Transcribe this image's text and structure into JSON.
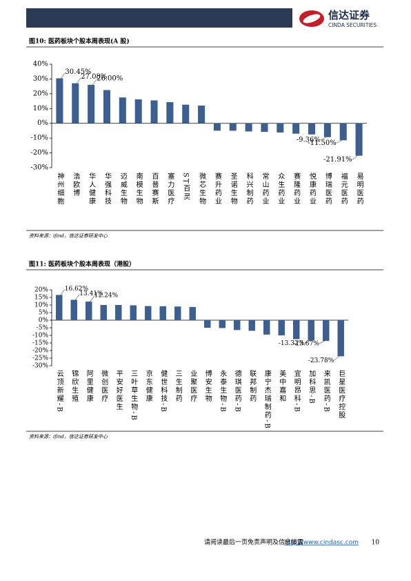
{
  "header": {
    "logo_cn": "信达证券",
    "logo_en": "CINDA SECURITIES"
  },
  "chart_data": [
    {
      "type": "bar",
      "title": "图10: 医药板块个股本周表现(A 股)",
      "source": "资料来源：ifind，信达证券研发中心",
      "color": "#3d5f8f",
      "categories": [
        "神州细胞",
        "浩欧博",
        "华人健康",
        "华强科技",
        "迈威生物",
        "南模生物",
        "百普赛斯",
        "塞力医疗",
        "ST百灵",
        "微芯生物",
        "赛升药业",
        "圣诺生物",
        "科兴制药",
        "常山药业",
        "众生药业",
        "赛隆药业",
        "悦康药业",
        "博瑞医药",
        "福元医药",
        "易明医药"
      ],
      "values": [
        30.45,
        27.08,
        26.0,
        22.5,
        17.5,
        16.2,
        15.5,
        14.3,
        12.6,
        12.0,
        -5.0,
        -5.0,
        -5.5,
        -5.8,
        -6.2,
        -7.0,
        -7.5,
        -9.36,
        -11.5,
        -21.91
      ],
      "value_labels": [
        "30.45%",
        "27.08%",
        "26.00%",
        null,
        null,
        null,
        null,
        null,
        null,
        null,
        null,
        null,
        null,
        null,
        null,
        null,
        null,
        "-9.36%",
        "-11.50%",
        "-21.91%"
      ],
      "ylim": [
        -30,
        40
      ],
      "yticks": [
        {
          "value": -30,
          "label": "-30%"
        },
        {
          "value": -20,
          "label": "-20%"
        },
        {
          "value": -10,
          "label": "-10%"
        },
        {
          "value": 0,
          "label": "0%"
        },
        {
          "value": 10,
          "label": "10%"
        },
        {
          "value": 20,
          "label": "20%"
        },
        {
          "value": 30,
          "label": "30%"
        },
        {
          "value": 40,
          "label": "40%"
        }
      ]
    },
    {
      "type": "bar",
      "title": "图11: 医药板块个股本周表现（港股）",
      "source": "资料来源：ifind，信达证券研发中心",
      "color": "#3d5f8f",
      "categories": [
        "云顶新耀-B",
        "锦欣生殖",
        "阿里健康",
        "微创医疗",
        "平安好医生",
        "三叶草生物-B",
        "京东健康",
        "健世科技-B",
        "三生制药",
        "业聚医疗",
        "博安生物",
        "永泰生物-B",
        "德琪医药-B",
        "联邦制药",
        "康宁杰瑞制药-B",
        "美中嘉和",
        "宜明昂科-B",
        "加科思-B",
        "来凯医药-B",
        "巨星医疗控股"
      ],
      "values": [
        16.62,
        13.41,
        12.24,
        10.0,
        10.0,
        9.8,
        9.3,
        9.2,
        9.0,
        8.7,
        -5.0,
        -5.2,
        -6.5,
        -7.0,
        -9.5,
        -10.0,
        -12.5,
        -13.32,
        -13.67,
        -23.78
      ],
      "value_labels": [
        "16.62%",
        "13.41%",
        "12.24%",
        null,
        null,
        null,
        null,
        null,
        null,
        null,
        null,
        null,
        null,
        null,
        null,
        null,
        null,
        "-13.32%",
        "-13.67%",
        "-23.78%"
      ],
      "ylim": [
        -30,
        20
      ],
      "yticks": [
        {
          "value": -30,
          "label": "-30%"
        },
        {
          "value": -25,
          "label": "-25%"
        },
        {
          "value": -20,
          "label": "-20%"
        },
        {
          "value": -15,
          "label": "-15%"
        },
        {
          "value": -10,
          "label": "-10%"
        },
        {
          "value": -5,
          "label": "-5%"
        },
        {
          "value": 0,
          "label": "0%"
        },
        {
          "value": 5,
          "label": "5%"
        },
        {
          "value": 10,
          "label": "10%"
        },
        {
          "value": 15,
          "label": "15%"
        },
        {
          "value": 20,
          "label": "20%"
        }
      ]
    }
  ],
  "footer": {
    "disclaimer": "请阅读最后一页免责声明及信息披露",
    "link": "http://www.cindasc.com",
    "page": "10"
  }
}
